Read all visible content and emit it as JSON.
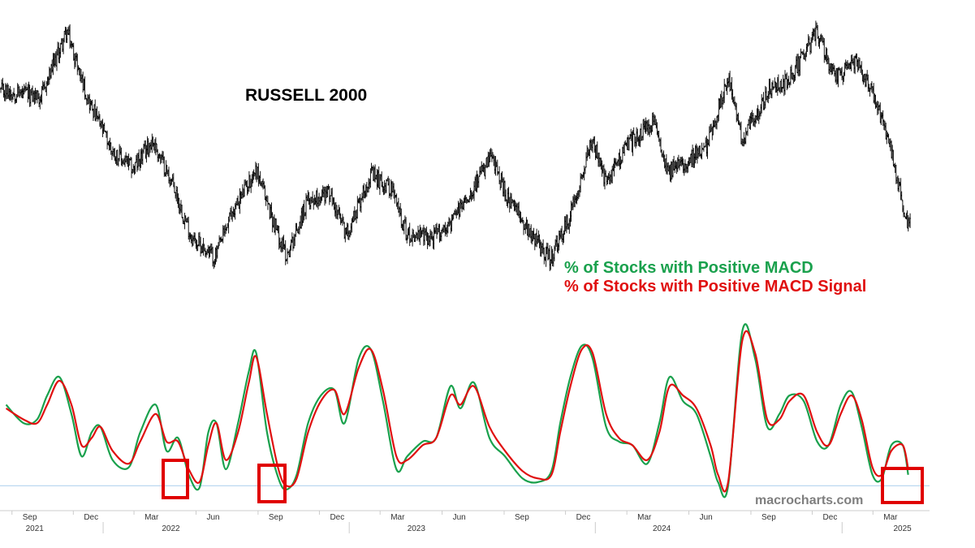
{
  "chart_data": [
    {
      "type": "line",
      "title": "RUSSELL 2000",
      "style": "ohlc-bars",
      "color": "#000000",
      "x_start": "2021-08",
      "x_end": "2025-04",
      "x": [
        "2021-08-15",
        "2021-10-01",
        "2021-11-08",
        "2021-12-10",
        "2022-01-15",
        "2022-02-15",
        "2022-03-15",
        "2022-04-15",
        "2022-05-12",
        "2022-06-16",
        "2022-07-10",
        "2022-08-16",
        "2022-09-10",
        "2022-09-30",
        "2022-11-01",
        "2022-12-01",
        "2022-12-28",
        "2023-02-01",
        "2023-03-05",
        "2023-03-28",
        "2023-05-04",
        "2023-06-01",
        "2023-07-31",
        "2023-08-25",
        "2023-10-27",
        "2023-11-22",
        "2023-12-27",
        "2024-01-17",
        "2024-02-15",
        "2024-03-28",
        "2024-04-19",
        "2024-06-13",
        "2024-07-16",
        "2024-08-05",
        "2024-09-15",
        "2024-10-15",
        "2024-11-25",
        "2024-12-20",
        "2025-01-22",
        "2025-02-20",
        "2025-03-13",
        "2025-04-08"
      ],
      "y": [
        2230,
        2210,
        2440,
        2200,
        2020,
        1960,
        2060,
        1900,
        1720,
        1650,
        1800,
        1960,
        1780,
        1655,
        1850,
        1880,
        1730,
        1940,
        1890,
        1730,
        1720,
        1770,
        2000,
        1850,
        1640,
        1780,
        2060,
        1910,
        2040,
        2120,
        1950,
        2030,
        2280,
        2060,
        2230,
        2270,
        2440,
        2280,
        2330,
        2200,
        2040,
        1760
      ],
      "ylim": [
        1600,
        2450
      ]
    },
    {
      "type": "line",
      "xlabel": "",
      "ylabel": "",
      "ticks_months": [
        "Sep",
        "Dec",
        "Mar",
        "Jun",
        "Sep",
        "Dec",
        "Mar",
        "Jun",
        "Sep",
        "Dec",
        "Mar",
        "Jun",
        "Sep",
        "Dec",
        "Mar"
      ],
      "ticks_years": [
        "2021",
        "2022",
        "2023",
        "2024",
        "2025"
      ],
      "ylim": [
        0,
        100
      ],
      "reference_line": 6,
      "series": [
        {
          "name": "% of Stocks with Positive MACD",
          "color": "#1aa14d",
          "x": [
            "2021-08-10",
            "2021-09-05",
            "2021-09-25",
            "2021-10-10",
            "2021-10-28",
            "2021-11-15",
            "2021-11-30",
            "2021-12-15",
            "2021-12-28",
            "2022-01-15",
            "2022-02-08",
            "2022-02-25",
            "2022-03-20",
            "2022-04-05",
            "2022-04-22",
            "2022-05-08",
            "2022-05-24",
            "2022-06-06",
            "2022-06-18",
            "2022-07-02",
            "2022-07-20",
            "2022-08-05",
            "2022-08-16",
            "2022-09-01",
            "2022-09-18",
            "2022-09-30",
            "2022-10-15",
            "2022-11-01",
            "2022-11-20",
            "2022-12-10",
            "2022-12-25",
            "2023-01-15",
            "2023-02-02",
            "2023-02-20",
            "2023-03-12",
            "2023-03-28",
            "2023-04-20",
            "2023-05-10",
            "2023-05-31",
            "2023-06-15",
            "2023-07-05",
            "2023-07-28",
            "2023-08-20",
            "2023-09-15",
            "2023-10-08",
            "2023-10-28",
            "2023-11-10",
            "2023-11-25",
            "2023-12-12",
            "2023-12-28",
            "2024-01-17",
            "2024-02-05",
            "2024-02-25",
            "2024-03-18",
            "2024-04-05",
            "2024-04-20",
            "2024-05-10",
            "2024-05-30",
            "2024-06-20",
            "2024-07-01",
            "2024-07-16",
            "2024-08-06",
            "2024-08-25",
            "2024-09-12",
            "2024-09-30",
            "2024-10-15",
            "2024-11-05",
            "2024-11-25",
            "2024-12-12",
            "2024-12-30",
            "2025-01-15",
            "2025-01-30",
            "2025-02-15",
            "2025-03-01",
            "2025-03-15",
            "2025-04-01",
            "2025-04-09"
          ],
          "values": [
            50,
            40,
            42,
            55,
            65,
            45,
            22,
            35,
            38,
            20,
            16,
            35,
            50,
            25,
            32,
            12,
            5,
            35,
            40,
            15,
            40,
            68,
            78,
            35,
            10,
            4,
            12,
            40,
            55,
            58,
            40,
            75,
            80,
            52,
            15,
            22,
            30,
            32,
            60,
            48,
            62,
            32,
            22,
            10,
            8,
            14,
            40,
            65,
            82,
            75,
            38,
            30,
            28,
            18,
            40,
            65,
            52,
            45,
            22,
            8,
            6,
            90,
            75,
            38,
            45,
            55,
            52,
            30,
            28,
            50,
            57,
            38,
            12,
            10,
            28,
            28,
            12
          ],
          "range": [
            0,
            100
          ]
        },
        {
          "name": "% of Stocks with Positive MACD Signal",
          "color": "#e01010",
          "x": [
            "2021-08-10",
            "2021-09-05",
            "2021-09-25",
            "2021-10-10",
            "2021-10-28",
            "2021-11-15",
            "2021-11-30",
            "2021-12-15",
            "2021-12-28",
            "2022-01-15",
            "2022-02-08",
            "2022-02-25",
            "2022-03-20",
            "2022-04-05",
            "2022-04-22",
            "2022-05-08",
            "2022-05-24",
            "2022-06-06",
            "2022-06-18",
            "2022-07-02",
            "2022-07-20",
            "2022-08-05",
            "2022-08-16",
            "2022-09-01",
            "2022-09-18",
            "2022-09-30",
            "2022-10-15",
            "2022-11-01",
            "2022-11-20",
            "2022-12-10",
            "2022-12-25",
            "2023-01-15",
            "2023-02-02",
            "2023-02-20",
            "2023-03-12",
            "2023-03-28",
            "2023-04-20",
            "2023-05-10",
            "2023-05-31",
            "2023-06-15",
            "2023-07-05",
            "2023-07-28",
            "2023-08-20",
            "2023-09-15",
            "2023-10-08",
            "2023-10-28",
            "2023-11-10",
            "2023-11-25",
            "2023-12-12",
            "2023-12-28",
            "2024-01-17",
            "2024-02-05",
            "2024-02-25",
            "2024-03-18",
            "2024-04-05",
            "2024-04-20",
            "2024-05-10",
            "2024-05-30",
            "2024-06-20",
            "2024-07-01",
            "2024-07-16",
            "2024-08-06",
            "2024-08-25",
            "2024-09-12",
            "2024-09-30",
            "2024-10-15",
            "2024-11-05",
            "2024-11-25",
            "2024-12-12",
            "2024-12-30",
            "2025-01-15",
            "2025-01-30",
            "2025-02-15",
            "2025-03-01",
            "2025-03-15",
            "2025-04-01",
            "2025-04-09"
          ],
          "values": [
            48,
            42,
            40,
            50,
            63,
            50,
            28,
            32,
            38,
            25,
            18,
            30,
            45,
            30,
            30,
            15,
            8,
            28,
            40,
            20,
            35,
            62,
            76,
            45,
            15,
            6,
            10,
            35,
            52,
            58,
            45,
            70,
            80,
            58,
            22,
            20,
            28,
            32,
            55,
            50,
            60,
            38,
            25,
            14,
            10,
            12,
            35,
            60,
            80,
            78,
            45,
            32,
            28,
            20,
            35,
            60,
            55,
            48,
            28,
            12,
            8,
            85,
            78,
            42,
            42,
            52,
            55,
            35,
            28,
            45,
            55,
            42,
            16,
            12,
            25,
            28,
            15
          ],
          "range": [
            0,
            100
          ]
        }
      ]
    }
  ],
  "watermark": "macrocharts.com"
}
